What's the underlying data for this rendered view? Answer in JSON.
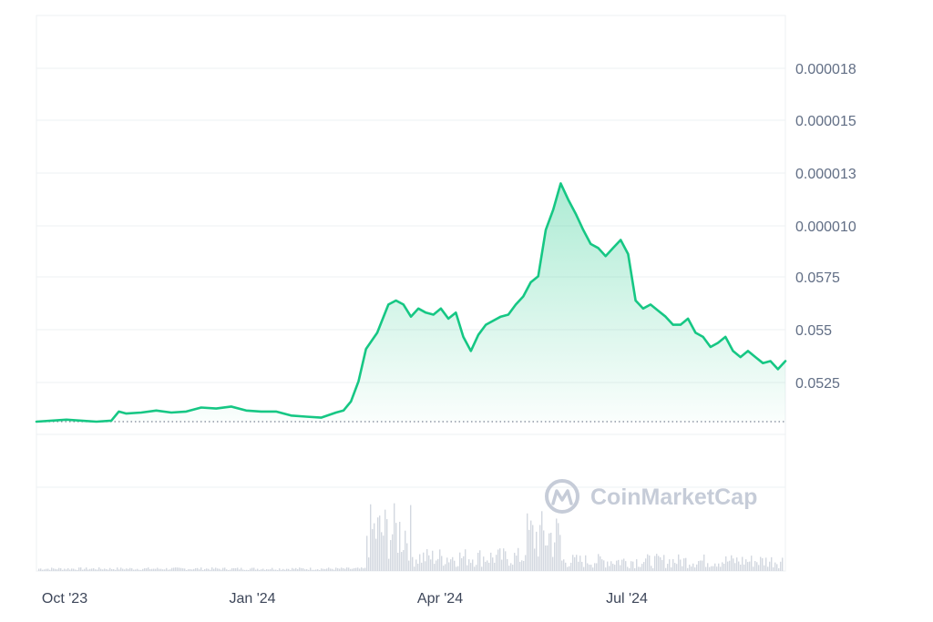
{
  "chart_data": {
    "type": "area",
    "x_tick_labels": [
      "Oct '23",
      "Jan '24",
      "Apr '24",
      "Jul '24"
    ],
    "y_tick_labels": [
      "0.000018",
      "0.000015",
      "0.000013",
      "0.000010",
      "0.0575",
      "0.055",
      "0.0525"
    ],
    "ylim": [
      0,
      20
    ],
    "x_start": "2023-09-21",
    "x_end": "2024-09-20",
    "baseline": 0.0,
    "series": [
      {
        "values": [
          [
            0.0,
            0.0
          ],
          [
            0.02,
            0.05
          ],
          [
            0.04,
            0.1
          ],
          [
            0.06,
            0.05
          ],
          [
            0.08,
            0.0
          ],
          [
            0.1,
            0.05
          ],
          [
            0.11,
            0.5
          ],
          [
            0.12,
            0.4
          ],
          [
            0.14,
            0.45
          ],
          [
            0.16,
            0.55
          ],
          [
            0.18,
            0.45
          ],
          [
            0.2,
            0.5
          ],
          [
            0.22,
            0.7
          ],
          [
            0.24,
            0.65
          ],
          [
            0.26,
            0.75
          ],
          [
            0.28,
            0.55
          ],
          [
            0.3,
            0.5
          ],
          [
            0.32,
            0.5
          ],
          [
            0.34,
            0.3
          ],
          [
            0.36,
            0.25
          ],
          [
            0.38,
            0.2
          ],
          [
            0.4,
            0.45
          ],
          [
            0.41,
            0.55
          ],
          [
            0.42,
            1.0
          ],
          [
            0.43,
            2.0
          ],
          [
            0.44,
            3.6
          ],
          [
            0.455,
            4.4
          ],
          [
            0.47,
            5.8
          ],
          [
            0.48,
            6.0
          ],
          [
            0.49,
            5.8
          ],
          [
            0.5,
            5.2
          ],
          [
            0.51,
            5.6
          ],
          [
            0.52,
            5.4
          ],
          [
            0.53,
            5.3
          ],
          [
            0.54,
            5.6
          ],
          [
            0.55,
            5.1
          ],
          [
            0.56,
            5.4
          ],
          [
            0.57,
            4.2
          ],
          [
            0.58,
            3.5
          ],
          [
            0.59,
            4.3
          ],
          [
            0.6,
            4.8
          ],
          [
            0.61,
            5.0
          ],
          [
            0.62,
            5.2
          ],
          [
            0.63,
            5.3
          ],
          [
            0.64,
            5.8
          ],
          [
            0.65,
            6.2
          ],
          [
            0.66,
            6.9
          ],
          [
            0.67,
            7.2
          ],
          [
            0.68,
            9.5
          ],
          [
            0.69,
            10.5
          ],
          [
            0.7,
            11.8
          ],
          [
            0.71,
            11.0
          ],
          [
            0.72,
            10.3
          ],
          [
            0.73,
            9.5
          ],
          [
            0.74,
            8.8
          ],
          [
            0.75,
            8.6
          ],
          [
            0.76,
            8.2
          ],
          [
            0.77,
            8.6
          ],
          [
            0.78,
            9.0
          ],
          [
            0.79,
            8.3
          ],
          [
            0.8,
            6.0
          ],
          [
            0.81,
            5.6
          ],
          [
            0.82,
            5.8
          ],
          [
            0.83,
            5.5
          ],
          [
            0.84,
            5.2
          ],
          [
            0.85,
            4.8
          ],
          [
            0.86,
            4.8
          ],
          [
            0.87,
            5.1
          ],
          [
            0.88,
            4.4
          ],
          [
            0.89,
            4.2
          ],
          [
            0.9,
            3.7
          ],
          [
            0.91,
            3.9
          ],
          [
            0.92,
            4.2
          ],
          [
            0.93,
            3.5
          ],
          [
            0.94,
            3.2
          ],
          [
            0.95,
            3.5
          ],
          [
            0.96,
            3.2
          ],
          [
            0.97,
            2.9
          ],
          [
            0.98,
            3.0
          ],
          [
            0.99,
            2.6
          ],
          [
            1.0,
            3.0
          ]
        ]
      }
    ],
    "volume_panel": true,
    "grid": "horizontal",
    "y_axis_position": "right",
    "line_color": "#16c784",
    "fill_color": "#16c784",
    "watermark": "CoinMarketCap"
  }
}
